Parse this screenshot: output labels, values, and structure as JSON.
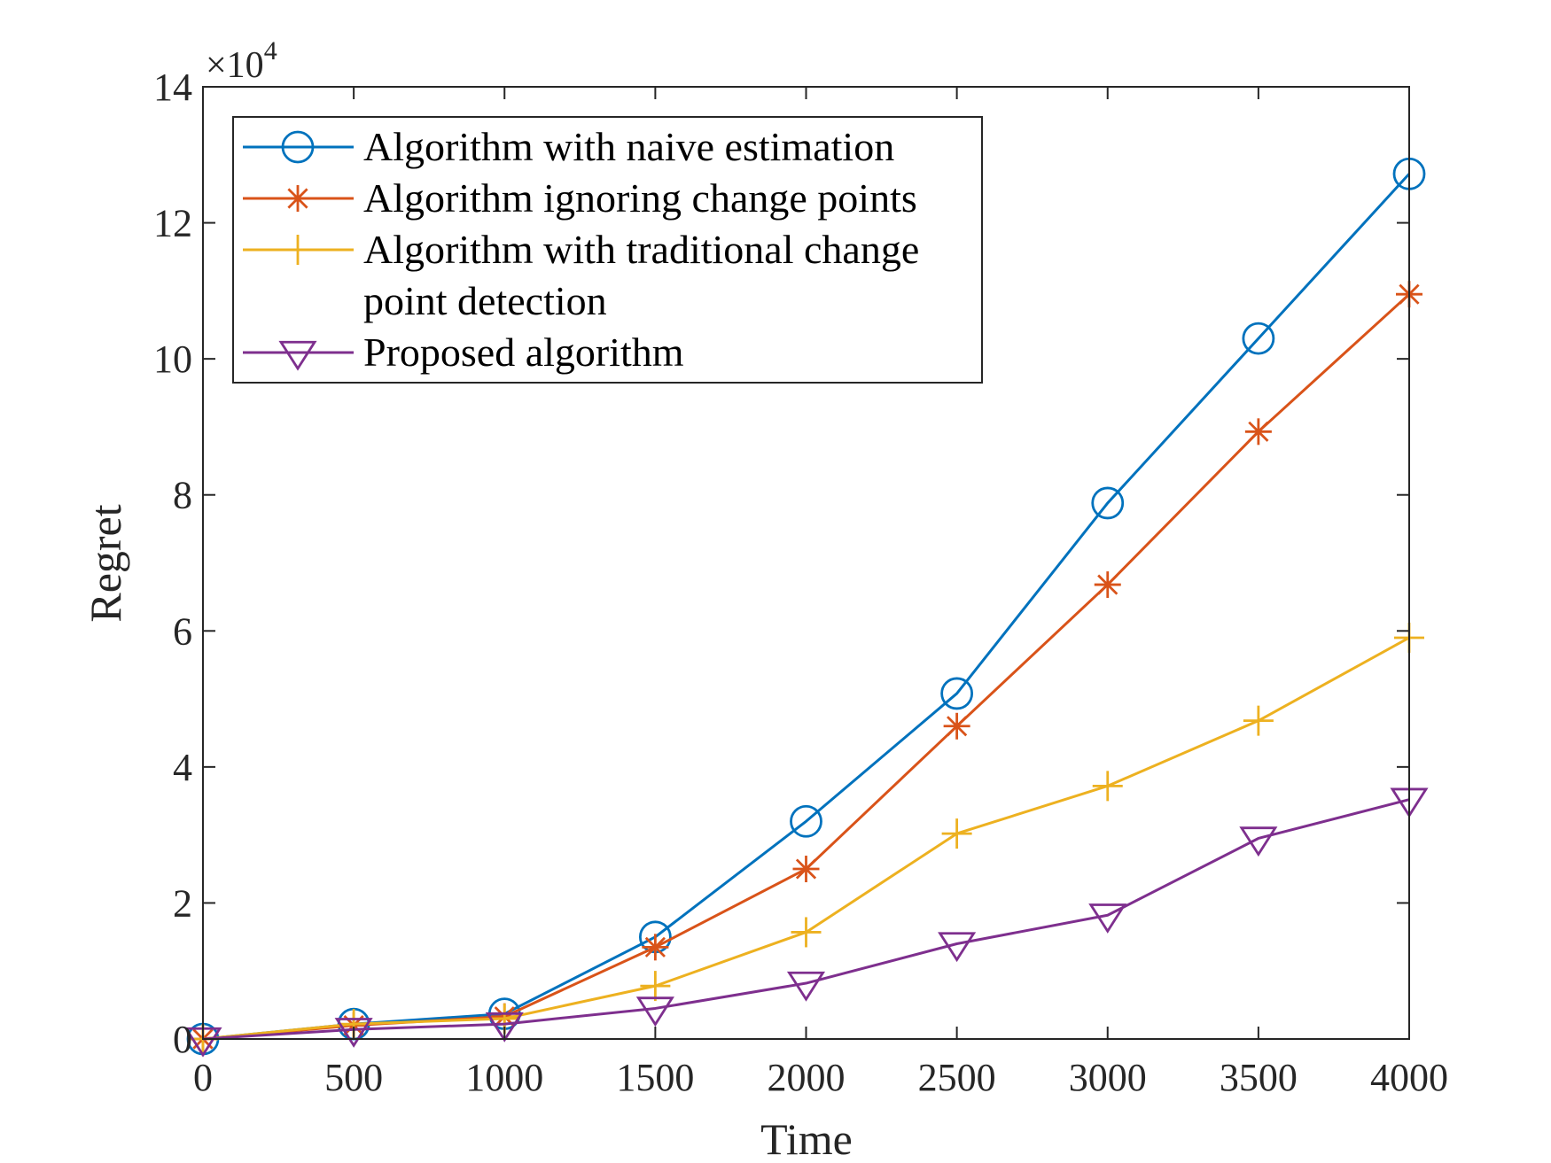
{
  "chart_data": {
    "type": "line",
    "title": "",
    "xlabel": "Time",
    "ylabel": "Regret",
    "x": [
      0,
      500,
      1000,
      1500,
      2000,
      2500,
      3000,
      3500,
      4000
    ],
    "xlim": [
      0,
      4000
    ],
    "ylim": [
      0,
      14
    ],
    "x_ticks": [
      "0",
      "500",
      "1000",
      "1500",
      "2000",
      "2500",
      "3000",
      "3500",
      "4000"
    ],
    "y_ticks": [
      "0",
      "2",
      "4",
      "6",
      "8",
      "10",
      "12",
      "14"
    ],
    "y_tick_values": [
      0,
      2,
      4,
      6,
      8,
      10,
      12,
      14
    ],
    "y_multiplier": {
      "base": "×10",
      "exponent": "4"
    },
    "grid": false,
    "legend_position": "top-left",
    "series": [
      {
        "name": "Algorithm with naive estimation",
        "legend_lines": [
          "Algorithm with naive estimation"
        ],
        "color": "#0072BD",
        "marker": "circle",
        "values": [
          0,
          0.22,
          0.37,
          1.5,
          3.2,
          5.08,
          7.88,
          10.3,
          12.72
        ]
      },
      {
        "name": "Algorithm ignoring change points",
        "legend_lines": [
          "Algorithm ignoring change points"
        ],
        "color": "#D95319",
        "marker": "asterisk",
        "values": [
          0,
          0.2,
          0.33,
          1.35,
          2.5,
          4.6,
          6.68,
          8.93,
          10.95
        ]
      },
      {
        "name": "Algorithm with traditional change point detection",
        "legend_lines": [
          "Algorithm with traditional change",
          "point detection"
        ],
        "color": "#EDB120",
        "marker": "plus",
        "values": [
          0,
          0.22,
          0.3,
          0.78,
          1.57,
          3.02,
          3.72,
          4.68,
          5.9
        ]
      },
      {
        "name": "Proposed algorithm",
        "legend_lines": [
          "Proposed algorithm"
        ],
        "color": "#7E2F8E",
        "marker": "triangle-down",
        "values": [
          0,
          0.14,
          0.22,
          0.45,
          0.82,
          1.4,
          1.82,
          2.95,
          3.52
        ]
      }
    ]
  }
}
